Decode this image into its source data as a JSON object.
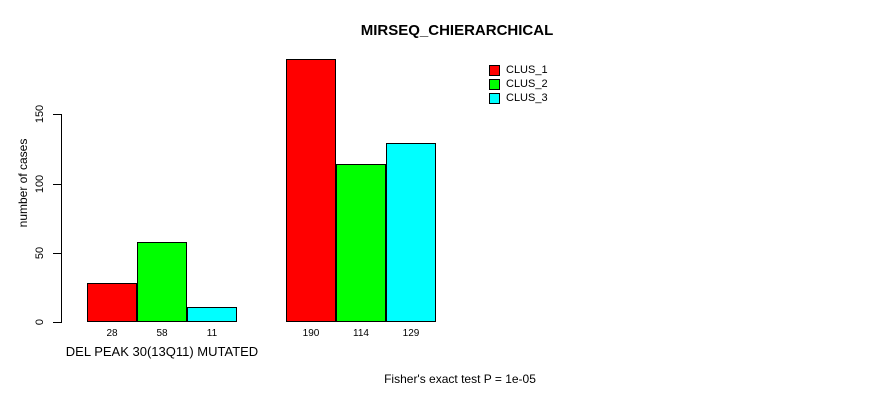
{
  "chart_data": {
    "type": "bar",
    "title": "MIRSEQ_CHIERARCHICAL",
    "ylabel": "number of cases",
    "xlabel": "",
    "ylim": [
      0,
      150
    ],
    "yticks": [
      0,
      50,
      100,
      150
    ],
    "grid": false,
    "legend_position": "top-right",
    "series": [
      {
        "name": "CLUS_1",
        "color": "#FF0000"
      },
      {
        "name": "CLUS_2",
        "color": "#00FF00"
      },
      {
        "name": "CLUS_3",
        "color": "#00FFFF"
      }
    ],
    "groups": [
      {
        "label": "DEL PEAK 30(13Q11) MUTATED",
        "values": [
          28,
          58,
          11
        ]
      },
      {
        "label": "",
        "values": [
          190,
          114,
          129
        ]
      }
    ],
    "annotation": "Fisher's exact test P = 1e-05",
    "axis_color": "#000000",
    "bar_border_color": "#000000"
  }
}
